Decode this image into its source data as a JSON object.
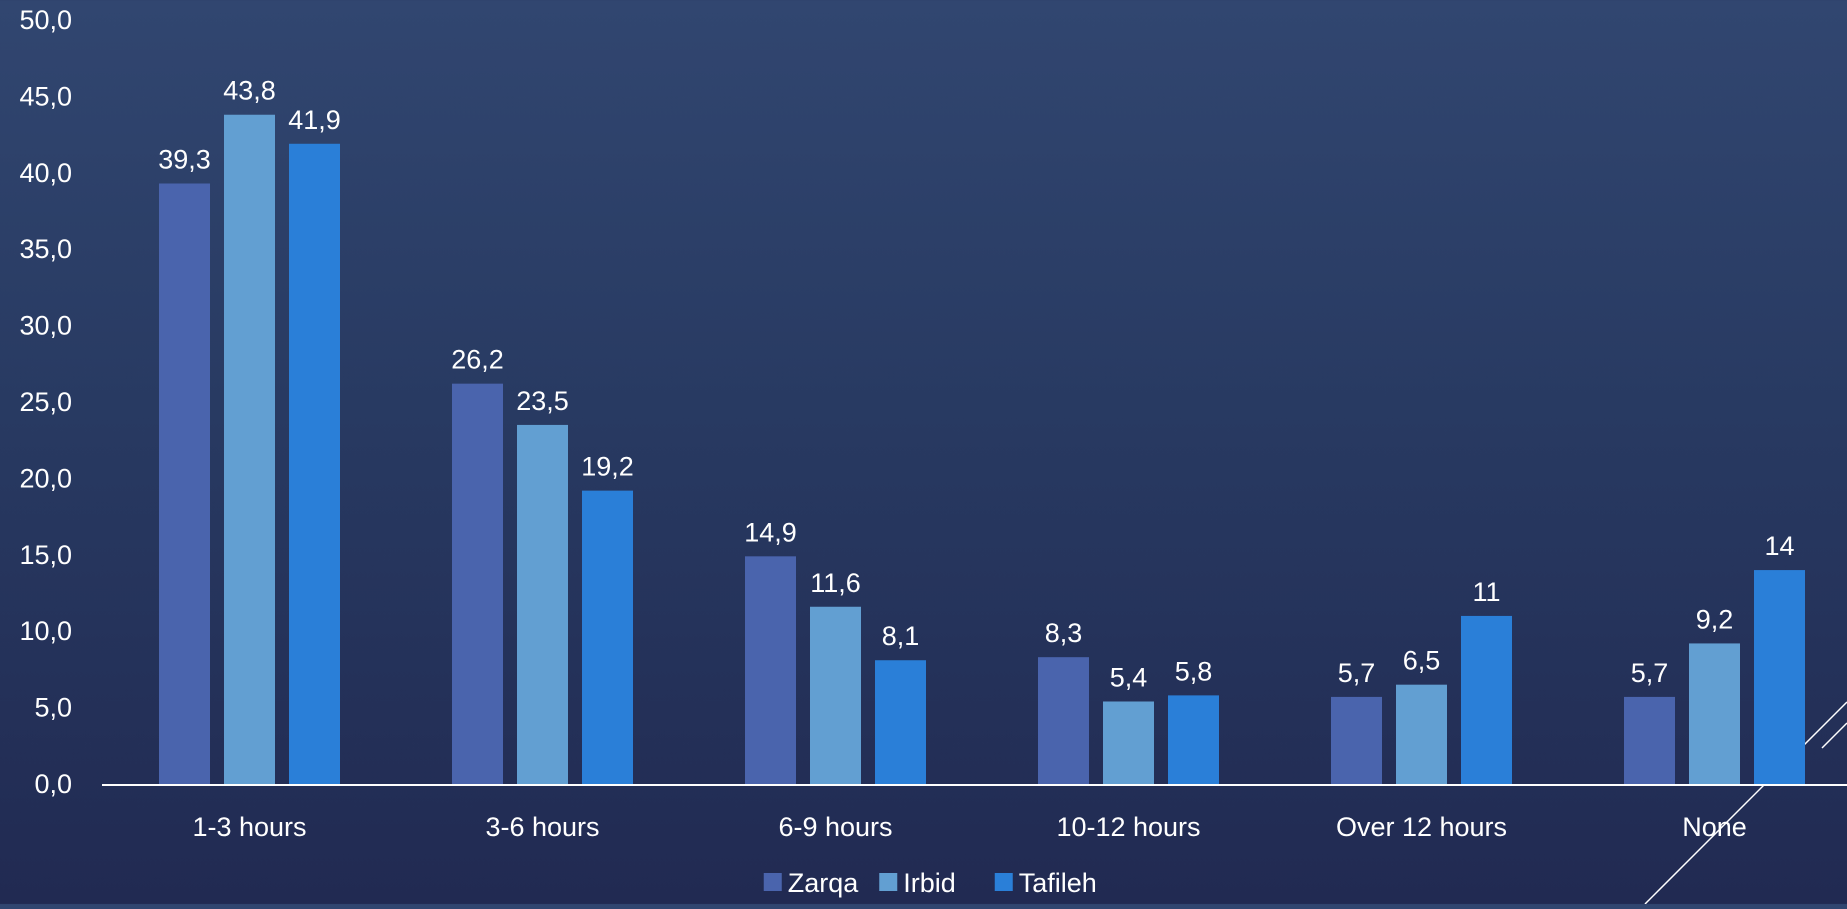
{
  "chart_data": {
    "type": "bar",
    "title": "",
    "xlabel": "",
    "ylabel": "",
    "ylim": [
      0,
      50
    ],
    "y_ticks": [
      "0,0",
      "5,0",
      "10,0",
      "15,0",
      "20,0",
      "25,0",
      "30,0",
      "35,0",
      "40,0",
      "45,0",
      "50,0"
    ],
    "grid": false,
    "legend_position": "bottom",
    "categories": [
      "1-3 hours",
      "3-6 hours",
      "6-9 hours",
      "10-12 hours",
      "Over 12 hours",
      "None"
    ],
    "series": [
      {
        "name": "Zarqa",
        "color": "#4a64ad",
        "values": [
          39.3,
          26.2,
          14.9,
          8.3,
          5.7,
          5.7
        ],
        "labels": [
          "39,3",
          "26,2",
          "14,9",
          "8,3",
          "5,7",
          "5,7"
        ]
      },
      {
        "name": "Irbid",
        "color": "#629fd2",
        "values": [
          43.8,
          23.5,
          11.6,
          5.4,
          6.5,
          9.2
        ],
        "labels": [
          "43,8",
          "23,5",
          "11,6",
          "5,4",
          "6,5",
          "9,2"
        ]
      },
      {
        "name": "Tafileh",
        "color": "#2a7fd8",
        "values": [
          41.9,
          19.2,
          8.1,
          5.8,
          11,
          14
        ],
        "labels": [
          "41,9",
          "19,2",
          "8,1",
          "5,8",
          "11",
          "14"
        ]
      }
    ]
  }
}
